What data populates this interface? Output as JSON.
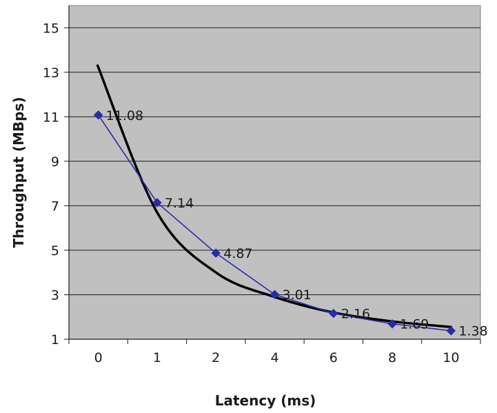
{
  "chart_data": {
    "type": "line",
    "title": "",
    "xlabel": "Latency (ms)",
    "ylabel": "Throughput (MBps)",
    "categories": [
      "0",
      "1",
      "2",
      "4",
      "6",
      "8",
      "10"
    ],
    "series": [
      {
        "values": [
          11.08,
          7.14,
          4.87,
          3.01,
          2.16,
          1.69,
          1.38
        ],
        "labels": [
          "11.08",
          "7.14",
          "4.87",
          "3.01",
          "2.16",
          "1.69",
          "1.38"
        ],
        "color": "#2b2ba8",
        "marker": "diamond"
      },
      {
        "kind": "trendline",
        "color": "#000000",
        "values": [
          13.3,
          6.7,
          4.0,
          2.9,
          2.2,
          1.8,
          1.55
        ]
      }
    ],
    "ylim": [
      1,
      16
    ],
    "yticks": [
      1,
      3,
      5,
      7,
      9,
      11,
      13,
      15
    ],
    "grid": true,
    "plot_background": "#c0c0c0"
  }
}
